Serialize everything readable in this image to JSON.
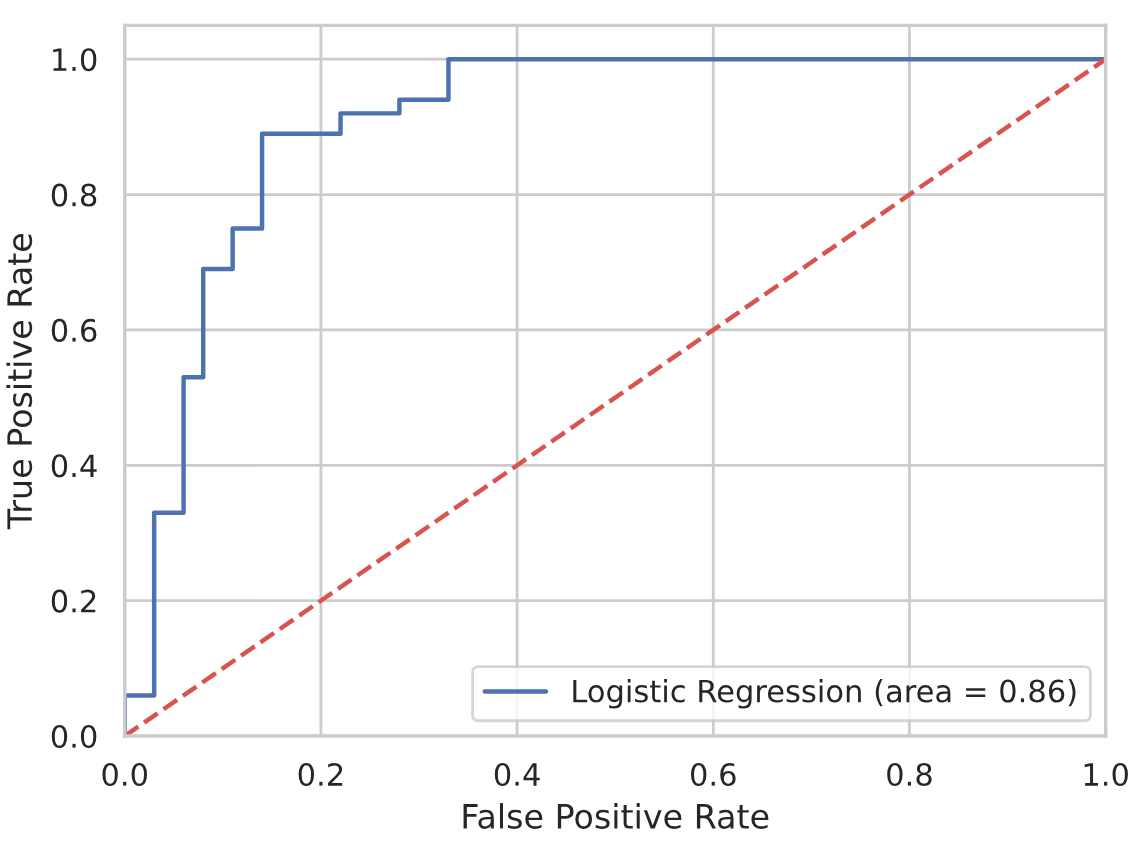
{
  "chart_data": {
    "type": "line",
    "xlabel": "False Positive Rate",
    "ylabel": "True Positive Rate",
    "xlim": [
      0,
      1
    ],
    "ylim": [
      0,
      1.05
    ],
    "xticks": [
      {
        "value": 0,
        "label": "0.0"
      },
      0.2,
      0.4,
      0.6,
      0.8,
      {
        "value": 1,
        "label": "1.0"
      }
    ],
    "yticks": [
      {
        "value": 0,
        "label": "0.0"
      },
      0.2,
      0.4,
      0.6,
      0.8,
      {
        "value": 1,
        "label": "1.0"
      }
    ],
    "grid": true,
    "legend": "bottom right",
    "series": [
      {
        "name": "Logistic Regression (area = 0.86)",
        "color": "#4c72b0",
        "line_style": "solid",
        "x": [
          0,
          0,
          0.03,
          0.03,
          0.06,
          0.06,
          0.08,
          0.08,
          0.11,
          0.11,
          0.14,
          0.14,
          0.22,
          0.22,
          0.28,
          0.28,
          0.33,
          0.33,
          1
        ],
        "values": [
          0,
          0.06,
          0.06,
          0.33,
          0.33,
          0.53,
          0.53,
          0.69,
          0.69,
          0.75,
          0.75,
          0.89,
          0.89,
          0.92,
          0.92,
          0.94,
          0.94,
          1,
          1
        ]
      },
      {
        "color": "#d9534f",
        "line_style": "dashed",
        "x": [
          0,
          1
        ],
        "values": [
          0,
          1
        ]
      }
    ]
  }
}
